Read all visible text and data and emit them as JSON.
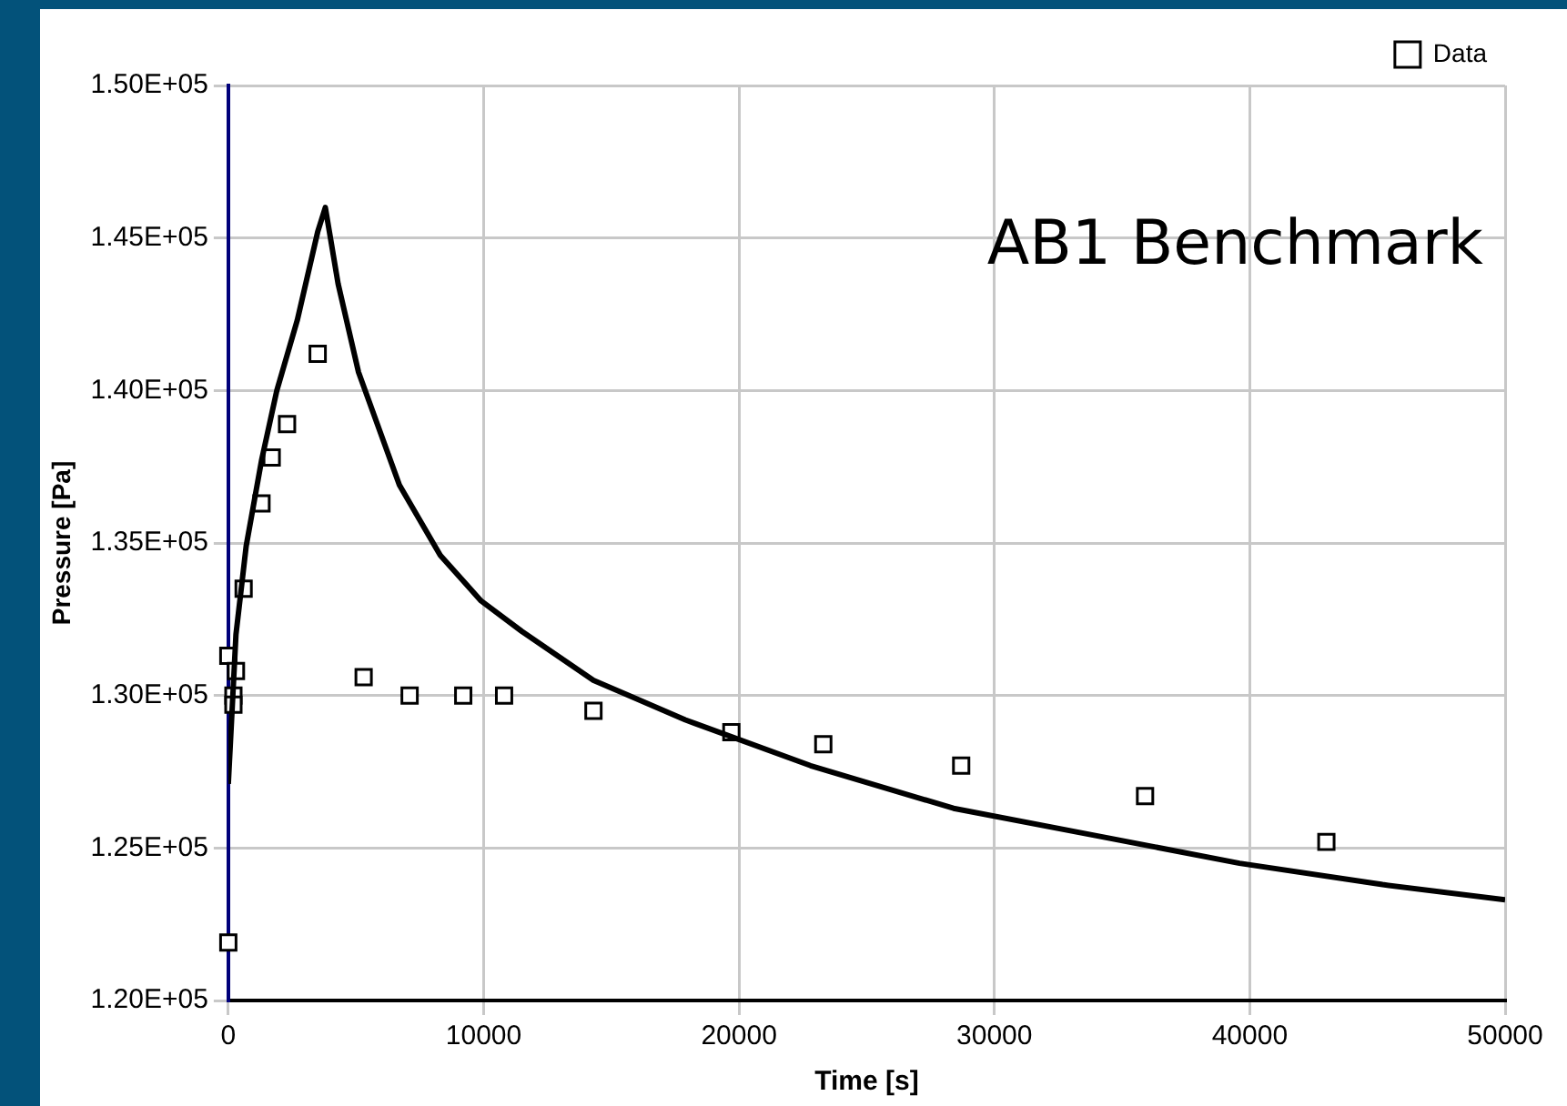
{
  "chart_data": {
    "type": "scatter",
    "xlabel": "Time [s]",
    "ylabel": "Pressure [Pa]",
    "annotations": [
      "AB1 Benchmark"
    ],
    "xlim": [
      0,
      50000
    ],
    "xticks": [
      0,
      10000,
      20000,
      30000,
      40000,
      50000
    ],
    "ylim": [
      120000,
      150000
    ],
    "yticks": [
      {
        "value": 120000,
        "label": "1.20E+05"
      },
      {
        "value": 125000,
        "label": "1.25E+05"
      },
      {
        "value": 130000,
        "label": "1.30E+05"
      },
      {
        "value": 135000,
        "label": "1.35E+05"
      },
      {
        "value": 140000,
        "label": "1.40E+05"
      },
      {
        "value": 145000,
        "label": "1.45E+05"
      },
      {
        "value": 150000,
        "label": "1.50E+05"
      }
    ],
    "grid": true,
    "legend": "top right",
    "series": [
      {
        "type": "line",
        "color": "#000000",
        "marker": "none",
        "x": [
          0,
          300,
          700,
          1300,
          1900,
          2700,
          3500,
          3800,
          4300,
          5100,
          6700,
          8300,
          9900,
          11500,
          14300,
          17900,
          22800,
          28400,
          34000,
          39600,
          45200,
          50000
        ],
        "values": [
          127100,
          132000,
          134900,
          137700,
          140000,
          142300,
          145200,
          146000,
          143500,
          140600,
          136900,
          134600,
          133100,
          132100,
          130500,
          129200,
          127700,
          126300,
          125400,
          124500,
          123800,
          123300
        ]
      },
      {
        "type": "scatter",
        "name": "Data",
        "color": "#000000",
        "marker": "square",
        "x": [
          0,
          0,
          200,
          200,
          300,
          600,
          1300,
          1700,
          2300,
          3500,
          5300,
          7100,
          9200,
          10800,
          14300,
          19700,
          23300,
          28700,
          35900,
          43000
        ],
        "values": [
          121900,
          131300,
          130000,
          129700,
          130800,
          133500,
          136300,
          137800,
          138900,
          141200,
          130600,
          130000,
          130000,
          130000,
          129500,
          128800,
          128400,
          127700,
          126700,
          125200
        ]
      }
    ]
  }
}
